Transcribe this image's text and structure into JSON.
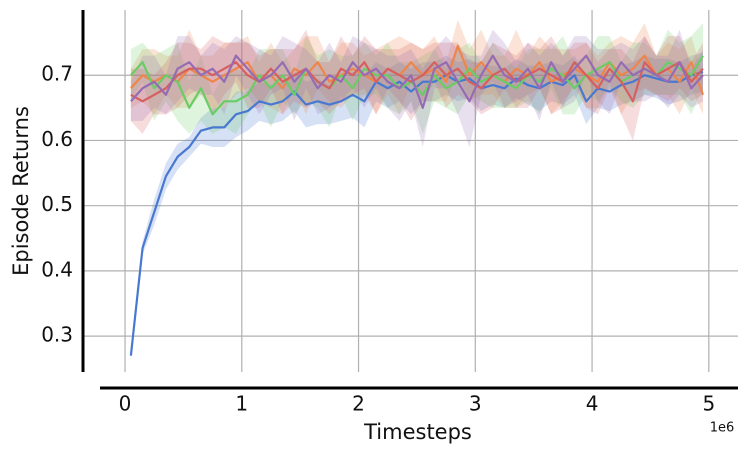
{
  "chart_data": {
    "type": "line",
    "xlabel": "Timesteps",
    "ylabel": "Episode Returns",
    "x_offset_label": "1e6",
    "xlim": [
      -0.36,
      5.25
    ],
    "ylim": [
      0.245,
      0.8
    ],
    "xticks": [
      0,
      1,
      2,
      3,
      4,
      5
    ],
    "yticks": [
      0.3,
      0.4,
      0.5,
      0.6,
      0.7
    ],
    "grid": true,
    "x": [
      0.05,
      0.15,
      0.25,
      0.35,
      0.45,
      0.55,
      0.65,
      0.75,
      0.85,
      0.95,
      1.05,
      1.15,
      1.25,
      1.35,
      1.45,
      1.55,
      1.65,
      1.75,
      1.85,
      1.95,
      2.05,
      2.15,
      2.25,
      2.35,
      2.45,
      2.55,
      2.65,
      2.75,
      2.85,
      2.95,
      3.05,
      3.15,
      3.25,
      3.35,
      3.45,
      3.55,
      3.65,
      3.75,
      3.85,
      3.95,
      4.05,
      4.15,
      4.25,
      4.35,
      4.45,
      4.55,
      4.65,
      4.75,
      4.85,
      4.95
    ],
    "series": [
      {
        "color": "#4878d0",
        "values": [
          0.27,
          0.435,
          0.49,
          0.545,
          0.575,
          0.59,
          0.615,
          0.62,
          0.62,
          0.64,
          0.645,
          0.66,
          0.655,
          0.66,
          0.675,
          0.655,
          0.66,
          0.655,
          0.66,
          0.67,
          0.66,
          0.69,
          0.68,
          0.69,
          0.675,
          0.69,
          0.69,
          0.7,
          0.69,
          0.695,
          0.68,
          0.685,
          0.68,
          0.695,
          0.685,
          0.68,
          0.69,
          0.685,
          0.7,
          0.66,
          0.68,
          0.675,
          0.685,
          0.69,
          0.7,
          0.695,
          0.69,
          0.69,
          0.7,
          0.705
        ],
        "errors": [
          0.005,
          0.01,
          0.02,
          0.02,
          0.02,
          0.015,
          0.02,
          0.03,
          0.03,
          0.035,
          0.03,
          0.03,
          0.03,
          0.03,
          0.03,
          0.035,
          0.035,
          0.03,
          0.03,
          0.035,
          0.04,
          0.03,
          0.03,
          0.03,
          0.035,
          0.03,
          0.03,
          0.03,
          0.03,
          0.03,
          0.035,
          0.03,
          0.03,
          0.03,
          0.03,
          0.035,
          0.03,
          0.03,
          0.03,
          0.035,
          0.03,
          0.03,
          0.03,
          0.03,
          0.03,
          0.03,
          0.035,
          0.03,
          0.03,
          0.03
        ]
      },
      {
        "color": "#ee854a",
        "values": [
          0.68,
          0.7,
          0.69,
          0.7,
          0.69,
          0.71,
          0.7,
          0.69,
          0.7,
          0.71,
          0.72,
          0.69,
          0.7,
          0.68,
          0.71,
          0.7,
          0.72,
          0.69,
          0.7,
          0.71,
          0.7,
          0.69,
          0.71,
          0.7,
          0.72,
          0.7,
          0.71,
          0.69,
          0.745,
          0.7,
          0.72,
          0.7,
          0.69,
          0.71,
          0.7,
          0.72,
          0.69,
          0.7,
          0.71,
          0.7,
          0.69,
          0.72,
          0.7,
          0.71,
          0.73,
          0.7,
          0.71,
          0.69,
          0.72,
          0.67
        ],
        "errors": [
          0.03,
          0.04,
          0.05,
          0.03,
          0.04,
          0.06,
          0.03,
          0.04,
          0.05,
          0.04,
          0.04,
          0.03,
          0.05,
          0.04,
          0.03,
          0.06,
          0.04,
          0.03,
          0.05,
          0.04,
          0.03,
          0.05,
          0.04,
          0.06,
          0.03,
          0.04,
          0.05,
          0.03,
          0.04,
          0.04,
          0.05,
          0.03,
          0.04,
          0.06,
          0.03,
          0.04,
          0.05,
          0.04,
          0.03,
          0.05,
          0.04,
          0.03,
          0.06,
          0.04,
          0.05,
          0.03,
          0.04,
          0.05,
          0.04,
          0.03
        ]
      },
      {
        "color": "#6acc64",
        "values": [
          0.7,
          0.72,
          0.68,
          0.7,
          0.69,
          0.65,
          0.68,
          0.64,
          0.66,
          0.66,
          0.67,
          0.7,
          0.68,
          0.7,
          0.67,
          0.71,
          0.69,
          0.68,
          0.7,
          0.68,
          0.71,
          0.7,
          0.7,
          0.68,
          0.69,
          0.67,
          0.7,
          0.68,
          0.69,
          0.71,
          0.69,
          0.7,
          0.69,
          0.68,
          0.7,
          0.69,
          0.71,
          0.7,
          0.68,
          0.7,
          0.71,
          0.72,
          0.69,
          0.7,
          0.71,
          0.7,
          0.72,
          0.71,
          0.7,
          0.73
        ],
        "errors": [
          0.04,
          0.03,
          0.05,
          0.04,
          0.06,
          0.04,
          0.05,
          0.03,
          0.04,
          0.05,
          0.03,
          0.04,
          0.06,
          0.04,
          0.03,
          0.05,
          0.04,
          0.06,
          0.03,
          0.05,
          0.04,
          0.03,
          0.05,
          0.04,
          0.03,
          0.06,
          0.04,
          0.03,
          0.05,
          0.04,
          0.03,
          0.05,
          0.04,
          0.03,
          0.04,
          0.05,
          0.03,
          0.06,
          0.04,
          0.03,
          0.05,
          0.04,
          0.03,
          0.05,
          0.04,
          0.03,
          0.05,
          0.04,
          0.06,
          0.05
        ]
      },
      {
        "color": "#d65f5f",
        "values": [
          0.67,
          0.66,
          0.67,
          0.68,
          0.7,
          0.71,
          0.71,
          0.7,
          0.71,
          0.72,
          0.7,
          0.69,
          0.71,
          0.69,
          0.7,
          0.71,
          0.69,
          0.68,
          0.71,
          0.7,
          0.72,
          0.69,
          0.71,
          0.7,
          0.69,
          0.7,
          0.72,
          0.7,
          0.71,
          0.69,
          0.68,
          0.7,
          0.71,
          0.69,
          0.7,
          0.71,
          0.7,
          0.69,
          0.72,
          0.7,
          0.68,
          0.71,
          0.69,
          0.66,
          0.72,
          0.7,
          0.71,
          0.72,
          0.69,
          0.71
        ],
        "errors": [
          0.04,
          0.05,
          0.03,
          0.04,
          0.05,
          0.04,
          0.03,
          0.06,
          0.04,
          0.03,
          0.05,
          0.04,
          0.03,
          0.05,
          0.04,
          0.06,
          0.03,
          0.04,
          0.05,
          0.03,
          0.04,
          0.05,
          0.03,
          0.04,
          0.06,
          0.04,
          0.03,
          0.05,
          0.04,
          0.03,
          0.04,
          0.05,
          0.03,
          0.04,
          0.05,
          0.03,
          0.06,
          0.04,
          0.03,
          0.05,
          0.04,
          0.03,
          0.05,
          0.06,
          0.04,
          0.03,
          0.05,
          0.04,
          0.03,
          0.04
        ]
      },
      {
        "color": "#956cb4",
        "values": [
          0.66,
          0.68,
          0.69,
          0.67,
          0.71,
          0.72,
          0.7,
          0.71,
          0.69,
          0.73,
          0.71,
          0.69,
          0.7,
          0.72,
          0.69,
          0.71,
          0.68,
          0.7,
          0.69,
          0.72,
          0.7,
          0.71,
          0.69,
          0.68,
          0.7,
          0.65,
          0.71,
          0.72,
          0.69,
          0.66,
          0.7,
          0.73,
          0.7,
          0.69,
          0.71,
          0.68,
          0.72,
          0.69,
          0.71,
          0.73,
          0.7,
          0.69,
          0.72,
          0.7,
          0.71,
          0.7,
          0.69,
          0.72,
          0.68,
          0.7
        ],
        "errors": [
          0.03,
          0.05,
          0.04,
          0.03,
          0.05,
          0.04,
          0.03,
          0.04,
          0.05,
          0.03,
          0.04,
          0.05,
          0.03,
          0.04,
          0.06,
          0.03,
          0.04,
          0.05,
          0.03,
          0.04,
          0.05,
          0.03,
          0.04,
          0.05,
          0.04,
          0.06,
          0.03,
          0.04,
          0.05,
          0.07,
          0.03,
          0.04,
          0.05,
          0.03,
          0.04,
          0.05,
          0.03,
          0.04,
          0.05,
          0.03,
          0.04,
          0.05,
          0.03,
          0.04,
          0.05,
          0.03,
          0.04,
          0.05,
          0.03,
          0.04
        ]
      }
    ]
  }
}
